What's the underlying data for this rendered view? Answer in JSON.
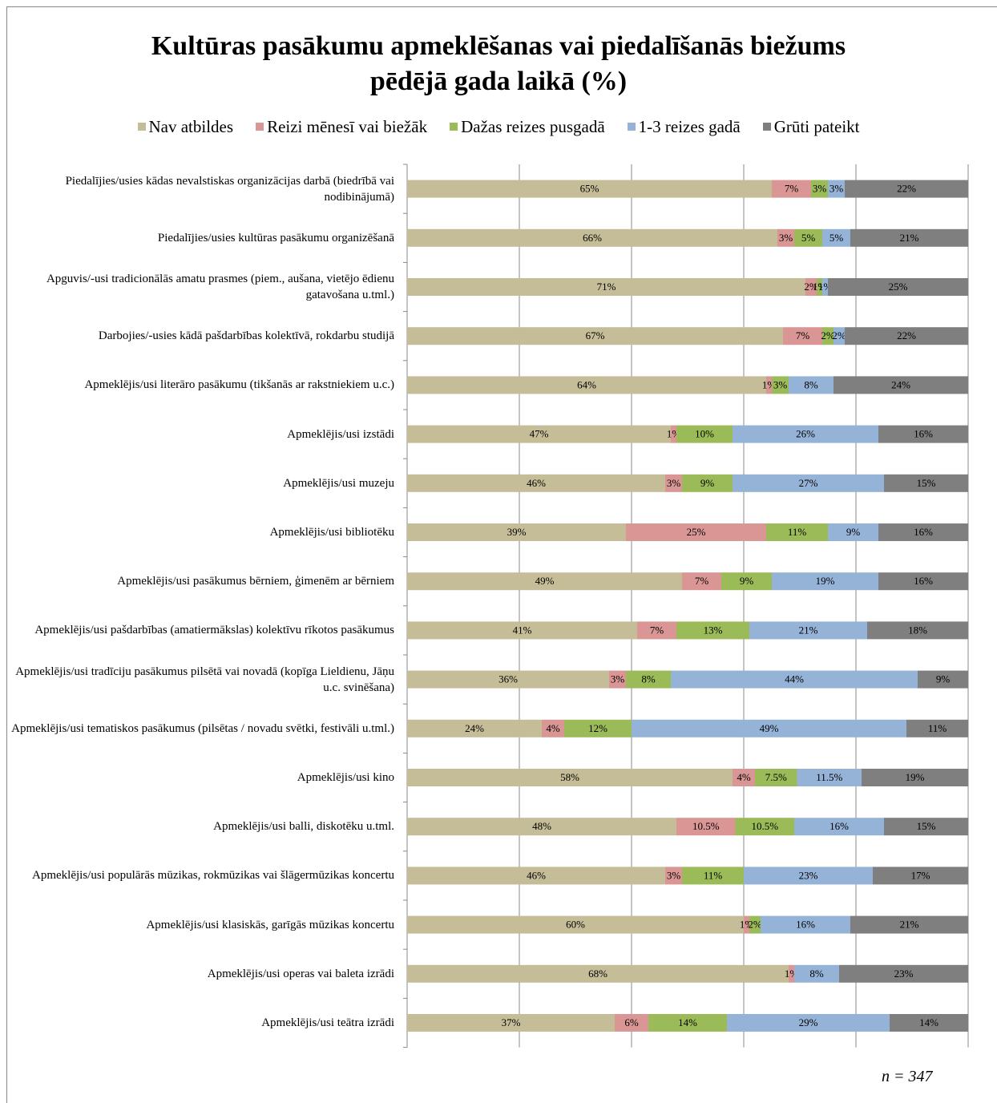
{
  "chart_data": {
    "type": "stacked-barh",
    "title": "Kultūras pasākumu apmeklēšanas vai piedalīšanās biežums pēdējā gada laikā (%)",
    "note": "n = 347",
    "categories": [
      "Piedalījies/usies kādas nevalstiskas organizācijas darbā (biedrībā vai nodibinājumā)",
      "Piedalījies/usies kultūras pasākumu organizēšanā",
      "Apguvis/-usi tradicionālās amatu prasmes (piem., aušana, vietējo ēdienu gatavošana u.tml.)",
      "Darbojies/-usies kādā pašdarbības kolektīvā, rokdarbu studijā",
      "Apmeklējis/usi literāro pasākumu (tikšanās ar rakstniekiem u.c.)",
      "Apmeklējis/usi izstādi",
      "Apmeklējis/usi muzeju",
      "Apmeklējis/usi bibliotēku",
      "Apmeklējis/usi pasākumus bērniem, ģimenēm ar bērniem",
      "Apmeklējis/usi pašdarbības (amatiermākslas) kolektīvu rīkotos pasākumus",
      "Apmeklējis/usi tradīciju pasākumus pilsētā vai novadā (kopīga Lieldienu, Jāņu u.c. svinēšana)",
      "Apmeklējis/usi tematiskos pasākumus (pilsētas / novadu svētki, festivāli u.tml.)",
      "Apmeklējis/usi kino",
      "Apmeklējis/usi balli, diskotēku u.tml.",
      "Apmeklējis/usi populārās mūzikas, rokmūzikas vai šlāgermūzikas koncertu",
      "Apmeklējis/usi klasiskās, garīgās mūzikas koncertu",
      "Apmeklējis/usi operas vai baleta izrādi",
      "Apmeklējis/usi teātra izrādi"
    ],
    "series": [
      {
        "name": "Nav atbildes",
        "color": "#c4bd97",
        "values": [
          65,
          66,
          71,
          67,
          64,
          47,
          46,
          39,
          49,
          41,
          36,
          24,
          58,
          48,
          46,
          60,
          68,
          37
        ],
        "value_labels": [
          "65%",
          "66%",
          "71%",
          "67%",
          "64%",
          "47%",
          "46%",
          "39%",
          "49%",
          "41%",
          "36%",
          "24%",
          "58%",
          "48%",
          "46%",
          "60%",
          "68%",
          "37%"
        ]
      },
      {
        "name": "Reizi mēnesī vai biežāk",
        "color": "#d99694",
        "values": [
          7,
          3,
          2,
          7,
          1,
          1,
          3,
          25,
          7,
          7,
          3,
          4,
          4,
          10.5,
          3,
          1,
          1,
          6
        ],
        "value_labels": [
          "7%",
          "3%",
          "2%",
          "7%",
          "1%",
          "1%",
          "3%",
          "25%",
          "7%",
          "7%",
          "3%",
          "4%",
          "4%",
          "10.5%",
          "3%",
          "1%",
          "1%",
          "6%"
        ]
      },
      {
        "name": "Dažas reizes pusgadā",
        "color": "#9bbb59",
        "values": [
          3,
          5,
          1,
          2,
          3,
          10,
          9,
          11,
          9,
          13,
          8,
          12,
          7.5,
          10.5,
          11,
          2,
          0,
          14
        ],
        "value_labels": [
          "3%",
          "5%",
          "1%",
          "2%",
          "3%",
          "10%",
          "9%",
          "11%",
          "9%",
          "13%",
          "8%",
          "12%",
          "7.5%",
          "10.5%",
          "11%",
          "2%",
          null,
          "14%"
        ]
      },
      {
        "name": "1-3 reizes gadā",
        "color": "#95b3d7",
        "values": [
          3,
          5,
          1,
          2,
          8,
          26,
          27,
          9,
          19,
          21,
          44,
          49,
          11.5,
          16,
          23,
          16,
          8,
          29
        ],
        "value_labels": [
          "3%",
          "5%",
          "1%",
          "2%",
          "8%",
          "26%",
          "27%",
          "9%",
          "19%",
          "21%",
          "44%",
          "49%",
          "11.5%",
          "16%",
          "23%",
          "16%",
          "8%",
          "29%"
        ]
      },
      {
        "name": "Grūti pateikt",
        "color": "#7f7f7f",
        "values": [
          22,
          21,
          25,
          22,
          24,
          16,
          15,
          16,
          16,
          18,
          9,
          11,
          19,
          15,
          17,
          21,
          23,
          14
        ],
        "value_labels": [
          "22%",
          "21%",
          "25%",
          "22%",
          "24%",
          "16%",
          "15%",
          "16%",
          "16%",
          "18%",
          "9%",
          "11%",
          "19%",
          "15%",
          "17%",
          "21%",
          "23%",
          "14%"
        ]
      }
    ],
    "xlim": [
      0,
      100
    ],
    "xticks": [
      0,
      20,
      40,
      60,
      80,
      100
    ],
    "grid": true,
    "legend": "top"
  }
}
